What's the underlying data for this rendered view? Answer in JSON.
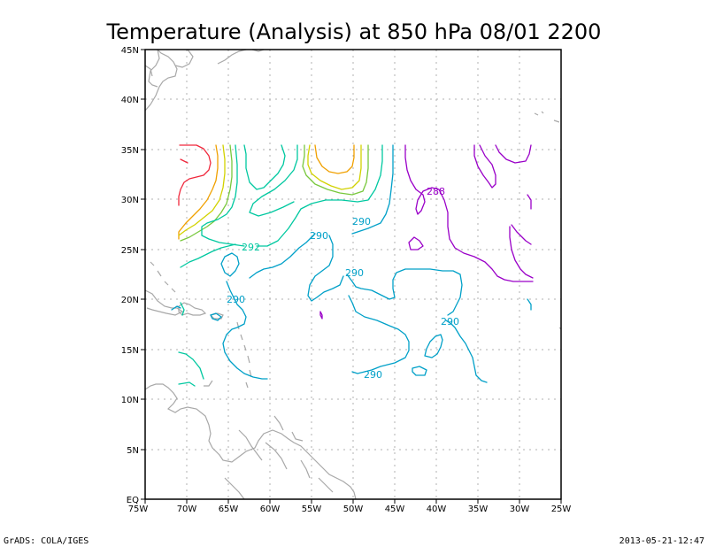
{
  "title": "Temperature (Analysis) at 850 hPa 08/01 2200",
  "footer": {
    "left": "GrADS: COLA/IGES",
    "right": "2013-05-21-12:47"
  },
  "axes": {
    "x_ticks": [
      "75W",
      "70W",
      "65W",
      "60W",
      "55W",
      "50W",
      "45W",
      "40W",
      "35W",
      "30W",
      "25W"
    ],
    "y_ticks": [
      "EQ",
      "5N",
      "10N",
      "15N",
      "20N",
      "25N",
      "30N",
      "35N",
      "40N",
      "45N"
    ],
    "lon_range": [
      -75,
      -25
    ],
    "lat_range": [
      0,
      45
    ]
  },
  "contour_labels": [
    "288",
    "290",
    "290",
    "290",
    "290",
    "290",
    "290",
    "292"
  ],
  "colors": {
    "c288": "#9a00c8",
    "c290": "#00a0c8",
    "c292": "#00c8a0",
    "c294": "#78c83c",
    "c296": "#d2d200",
    "c298": "#f0a000",
    "c300": "#f0283c",
    "coast": "#a8a8a8"
  }
}
